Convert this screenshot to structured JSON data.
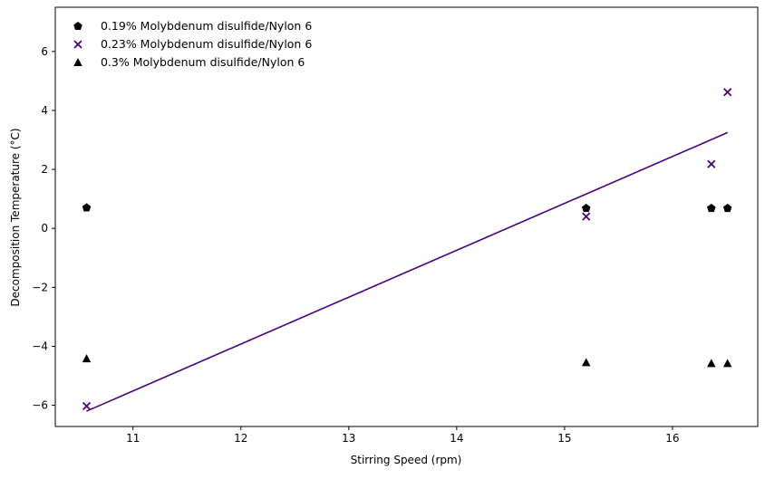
{
  "chart_data": {
    "type": "scatter",
    "title": "",
    "xlabel": "Stirring Speed (rpm)",
    "ylabel": "Decomposition Temperature (°C)",
    "xlim": [
      10.28,
      16.79
    ],
    "ylim": [
      -6.72,
      7.5
    ],
    "xticks": [
      11,
      12,
      13,
      14,
      15,
      16
    ],
    "yticks": [
      -6,
      -4,
      -2,
      0,
      2,
      4,
      6
    ],
    "grid": false,
    "legend_position": "top-left",
    "series": [
      {
        "name": "0.19% Molybdenum disulfide/Nylon 6",
        "marker": "pentagon",
        "color": "#000000",
        "x": [
          10.57,
          15.2,
          16.36,
          16.51
        ],
        "y": [
          0.7,
          0.68,
          0.68,
          0.68
        ]
      },
      {
        "name": "0.23% Molybdenum disulfide/Nylon 6",
        "marker": "x",
        "color": "#4b0082",
        "x": [
          10.57,
          15.2,
          16.36,
          16.51
        ],
        "y": [
          -6.03,
          0.4,
          2.18,
          4.62
        ]
      },
      {
        "name": "0.3% Molybdenum disulfide/Nylon 6",
        "marker": "triangle",
        "color": "#000000",
        "x": [
          10.57,
          15.2,
          16.36,
          16.51
        ],
        "y": [
          -4.42,
          -4.55,
          -4.58,
          -4.58
        ]
      }
    ],
    "fit_line": {
      "color": "#4b0082",
      "x": [
        10.57,
        16.51
      ],
      "y": [
        -6.2,
        3.25
      ]
    }
  }
}
